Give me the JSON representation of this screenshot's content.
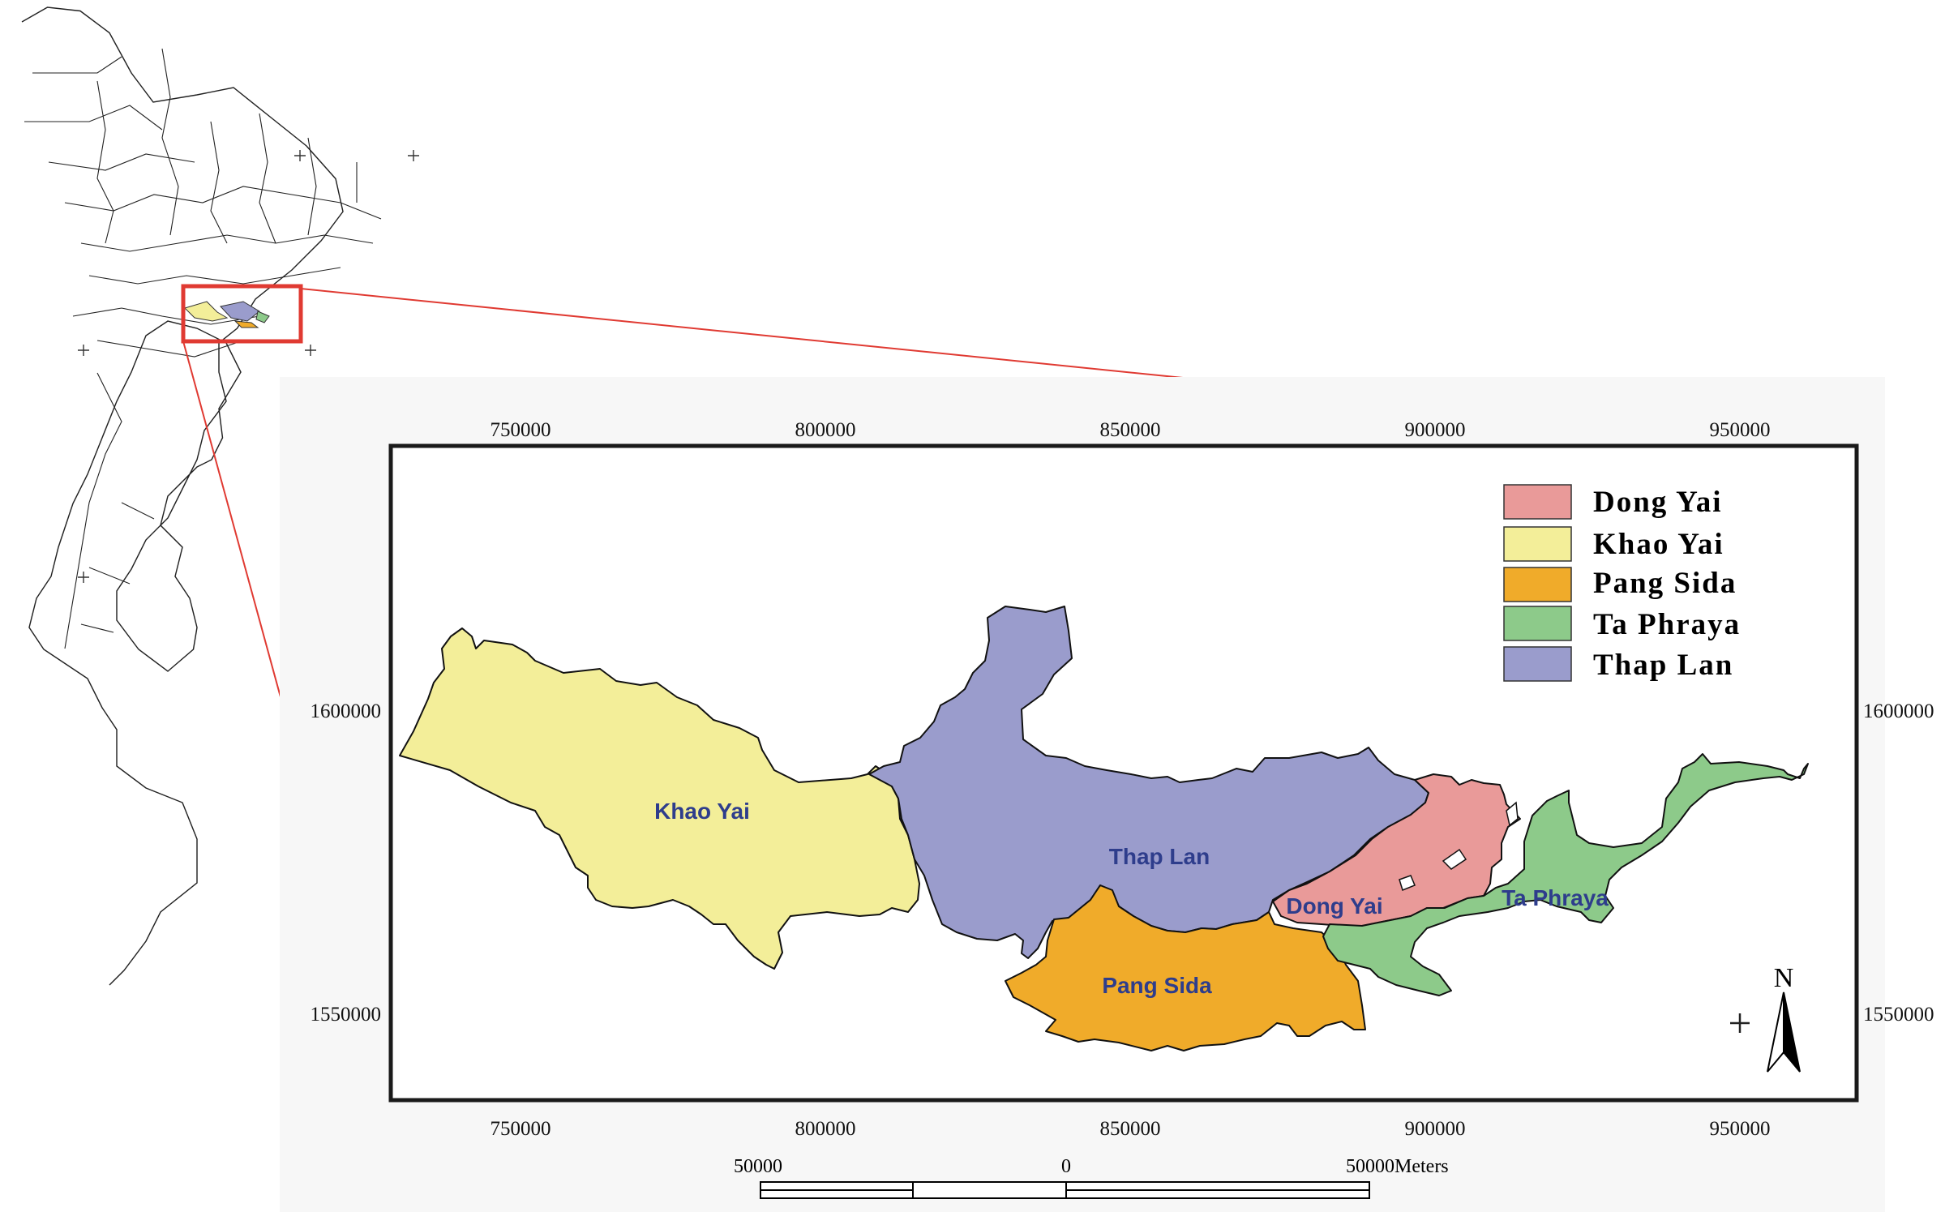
{
  "legend": {
    "items": [
      {
        "label": "Dong Yai",
        "color": "#e99a99"
      },
      {
        "label": "Khao Yai",
        "color": "#f3ee99"
      },
      {
        "label": "Pang Sida",
        "color": "#f0ab2a"
      },
      {
        "label": "Ta Phraya",
        "color": "#8dca8a"
      },
      {
        "label": "Thap Lan",
        "color": "#9a9ccc"
      }
    ]
  },
  "map_labels": {
    "khao_yai": "Khao Yai",
    "thap_lan": "Thap Lan",
    "pang_sida": "Pang Sida",
    "dong_yai": "Dong Yai",
    "ta_phraya": "Ta Phraya"
  },
  "axes": {
    "x_ticks": [
      "750000",
      "800000",
      "850000",
      "900000",
      "950000"
    ],
    "y_ticks": [
      "1600000",
      "1550000"
    ]
  },
  "scale_bar": {
    "left": "50000",
    "middle": "0",
    "right": "50000Meters"
  },
  "north_arrow": {
    "label": "N",
    "icon": "north-arrow-icon"
  },
  "colors": {
    "highlight_box": "#e03a32",
    "frame": "#1a1a1a",
    "label_text": "#2e3d8c"
  }
}
